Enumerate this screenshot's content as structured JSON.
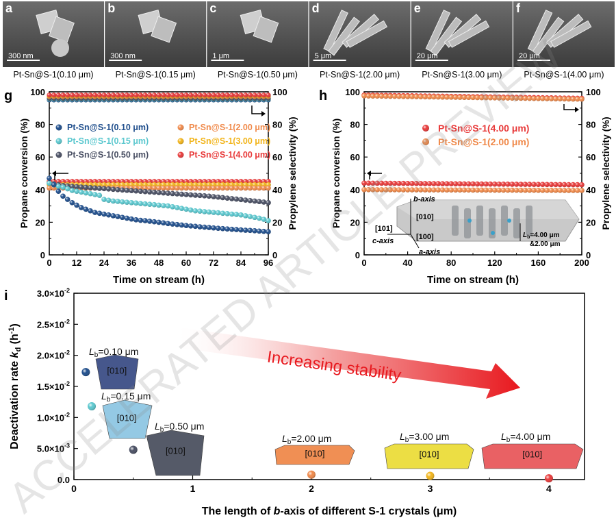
{
  "sem_panels": [
    {
      "letter": "a",
      "scale": "300 nm",
      "caption": "Pt-Sn@S-1(0.10 μm)"
    },
    {
      "letter": "b",
      "scale": "300 nm",
      "caption": "Pt-Sn@S-1(0.15 μm)"
    },
    {
      "letter": "c",
      "scale": "1 μm",
      "caption": "Pt-Sn@S-1(0.50 μm)"
    },
    {
      "letter": "d",
      "scale": "5 μm",
      "caption": "Pt-Sn@S-1(2.00 μm)"
    },
    {
      "letter": "e",
      "scale": "20 μm",
      "caption": "Pt-Sn@S-1(3.00 μm)"
    },
    {
      "letter": "f",
      "scale": "20 μm",
      "caption": "Pt-Sn@S-1(4.00 μm)"
    }
  ],
  "watermark": "ACCELERATED ARTICLE PREVIEW",
  "colors": {
    "s010": "#1f4e8c",
    "s015": "#5cc8cf",
    "s050": "#4a5064",
    "s200": "#f08a4b",
    "s300": "#f2b51c",
    "s400": "#e83a3a"
  },
  "chart_data": [
    {
      "panel": "g",
      "type": "scatter",
      "xlabel": "Time on stream (h)",
      "ylabel": "Propane conversion (%)",
      "y2label": "Propylene selectivity (%)",
      "xlim": [
        0,
        96
      ],
      "ylim": [
        0,
        100
      ],
      "y2lim": [
        0,
        100
      ],
      "xticks": [
        0,
        12,
        24,
        36,
        48,
        60,
        72,
        84,
        96
      ],
      "yticks": [
        0,
        20,
        40,
        60,
        80,
        100
      ],
      "legend": [
        {
          "name": "Pt-Sn@S-1(0.10 μm)",
          "color": "#1f4e8c"
        },
        {
          "name": "Pt-Sn@S-1(2.00 μm)",
          "color": "#f08a4b"
        },
        {
          "name": "Pt-Sn@S-1(0.15 μm)",
          "color": "#5cc8cf"
        },
        {
          "name": "Pt-Sn@S-1(3.00 μm)",
          "color": "#f2b51c"
        },
        {
          "name": "Pt-Sn@S-1(0.50 μm)",
          "color": "#4a5064"
        },
        {
          "name": "Pt-Sn@S-1(4.00 μm)",
          "color": "#e83a3a"
        }
      ],
      "conversion_series": [
        {
          "sample": "0.10",
          "color": "#1f4e8c",
          "x": [
            0,
            2,
            4,
            6,
            8,
            10,
            12,
            14,
            16,
            18,
            20,
            22,
            24,
            26,
            28,
            30,
            32,
            34,
            36,
            38,
            40,
            42,
            44,
            46,
            48,
            50,
            52,
            54,
            56,
            58,
            60,
            62,
            64,
            66,
            68,
            70,
            72,
            74,
            76,
            78,
            80,
            82,
            84,
            86,
            88,
            90,
            92,
            94,
            96
          ],
          "y": [
            47,
            43,
            39,
            36,
            34,
            32,
            30.5,
            29,
            28,
            27,
            26,
            25.5,
            25,
            24.5,
            24,
            23.5,
            23,
            22.5,
            22,
            21.5,
            21.2,
            21,
            20.6,
            20.3,
            20,
            19.6,
            19.2,
            18.9,
            18.6,
            18.3,
            18,
            17.7,
            17.5,
            17.2,
            17,
            16.8,
            16.5,
            16.3,
            16.1,
            15.9,
            15.7,
            15.5,
            15.3,
            15.1,
            15,
            14.8,
            14.6,
            14.4,
            14.2
          ]
        },
        {
          "sample": "0.15",
          "color": "#5cc8cf",
          "x": [
            0,
            2,
            4,
            6,
            8,
            10,
            12,
            14,
            16,
            18,
            20,
            22,
            24,
            26,
            28,
            30,
            32,
            34,
            36,
            38,
            40,
            42,
            44,
            46,
            48,
            50,
            52,
            54,
            56,
            58,
            60,
            62,
            64,
            66,
            68,
            70,
            72,
            74,
            76,
            78,
            80,
            82,
            84,
            86,
            88,
            90,
            92,
            94,
            96
          ],
          "y": [
            44,
            43,
            42,
            41.5,
            40.5,
            39.5,
            39,
            38.5,
            38,
            37.5,
            37,
            36.5,
            34,
            33.5,
            33,
            32.8,
            32.5,
            32.3,
            32,
            31.8,
            31.5,
            31.3,
            31,
            30.8,
            30.5,
            30.2,
            30,
            29.5,
            29,
            28.5,
            28,
            27.5,
            27,
            26.8,
            26.5,
            26.3,
            26,
            25.8,
            25.5,
            25.3,
            25,
            24.8,
            24.5,
            24,
            23.5,
            23,
            22.5,
            21.8,
            21
          ]
        },
        {
          "sample": "0.50",
          "color": "#4a5064",
          "x": [
            0,
            2,
            4,
            6,
            8,
            10,
            12,
            14,
            16,
            18,
            20,
            22,
            24,
            26,
            28,
            30,
            32,
            34,
            36,
            38,
            40,
            42,
            44,
            46,
            48,
            50,
            52,
            54,
            56,
            58,
            60,
            62,
            64,
            66,
            68,
            70,
            72,
            74,
            76,
            78,
            80,
            82,
            84,
            86,
            88,
            90,
            92,
            94,
            96
          ],
          "y": [
            44,
            43.5,
            43,
            42.5,
            42.3,
            42,
            41.8,
            41.6,
            41.4,
            41.2,
            41,
            40.8,
            40.6,
            40.4,
            40.2,
            40,
            39.8,
            39.6,
            39.4,
            39.2,
            39,
            38.8,
            38.6,
            38.4,
            38.2,
            38,
            37.8,
            37.6,
            37.4,
            37.2,
            37,
            36.8,
            36.6,
            36.4,
            36.2,
            36,
            35.7,
            35.4,
            35.1,
            34.8,
            34.5,
            34.2,
            33.9,
            33.6,
            33.3,
            33,
            32.7,
            32.4,
            32
          ]
        },
        {
          "sample": "2.00",
          "color": "#f08a4b",
          "x": [
            0,
            2,
            4,
            6,
            8,
            10,
            12,
            14,
            16,
            18,
            20,
            22,
            24,
            26,
            28,
            30,
            32,
            34,
            36,
            38,
            40,
            42,
            44,
            46,
            48,
            50,
            52,
            54,
            56,
            58,
            60,
            62,
            64,
            66,
            68,
            70,
            72,
            74,
            76,
            78,
            80,
            82,
            84,
            86,
            88,
            90,
            92,
            94,
            96
          ],
          "y": [
            41,
            41,
            41,
            41,
            41,
            41,
            41,
            41,
            41,
            41,
            41,
            41,
            41,
            41,
            41,
            41,
            41,
            41,
            41,
            41,
            41,
            41,
            41,
            41,
            41,
            41,
            41,
            41,
            41,
            41,
            41,
            41,
            41,
            41,
            41,
            41,
            41,
            41,
            41,
            41,
            41,
            41,
            41,
            41,
            41,
            41,
            41,
            41,
            41
          ]
        },
        {
          "sample": "3.00",
          "color": "#f2b51c",
          "x": [
            0,
            2,
            4,
            6,
            8,
            10,
            12,
            14,
            16,
            18,
            20,
            22,
            24,
            26,
            28,
            30,
            32,
            34,
            36,
            38,
            40,
            42,
            44,
            46,
            48,
            50,
            52,
            54,
            56,
            58,
            60,
            62,
            64,
            66,
            68,
            70,
            72,
            74,
            76,
            78,
            80,
            82,
            84,
            86,
            88,
            90,
            92,
            94,
            96
          ],
          "y": [
            43,
            43,
            43,
            43,
            43,
            43,
            43,
            43,
            43,
            43,
            43,
            43,
            43,
            43,
            43,
            43,
            43,
            43,
            43,
            43,
            43,
            43,
            43,
            43,
            43,
            43,
            43,
            43,
            43,
            43,
            43,
            43,
            43,
            43,
            43,
            43,
            43,
            43,
            43,
            43,
            43,
            43,
            43,
            43,
            43,
            43,
            43,
            43,
            43
          ]
        },
        {
          "sample": "4.00",
          "color": "#e83a3a",
          "x": [
            0,
            2,
            4,
            6,
            8,
            10,
            12,
            14,
            16,
            18,
            20,
            22,
            24,
            26,
            28,
            30,
            32,
            34,
            36,
            38,
            40,
            42,
            44,
            46,
            48,
            50,
            52,
            54,
            56,
            58,
            60,
            62,
            64,
            66,
            68,
            70,
            72,
            74,
            76,
            78,
            80,
            82,
            84,
            86,
            88,
            90,
            92,
            94,
            96
          ],
          "y": [
            45,
            45,
            45,
            45,
            45,
            45,
            45,
            45,
            45,
            45,
            45,
            45,
            45,
            45,
            45,
            45,
            45,
            45,
            45,
            45,
            45,
            45,
            45,
            45,
            45,
            45,
            45,
            45,
            45,
            45,
            45,
            45,
            45,
            45,
            45,
            45,
            45,
            45,
            45,
            45,
            45,
            45,
            45,
            45,
            45,
            45,
            45,
            45,
            45
          ]
        }
      ],
      "selectivity_series": [
        {
          "sample": "0.10",
          "color": "#1f4e8c",
          "value": 95
        },
        {
          "sample": "0.15",
          "color": "#5cc8cf",
          "value": 95.5
        },
        {
          "sample": "0.50",
          "color": "#4a5064",
          "value": 96
        },
        {
          "sample": "2.00",
          "color": "#f08a4b",
          "value": 97
        },
        {
          "sample": "3.00",
          "color": "#f2b51c",
          "value": 97.5
        },
        {
          "sample": "4.00",
          "color": "#e83a3a",
          "value": 98
        }
      ]
    },
    {
      "panel": "h",
      "type": "scatter",
      "xlabel": "Time on stream (h)",
      "ylabel": "Propane conversion (%)",
      "y2label": "Propylene selectivity (%)",
      "xlim": [
        0,
        200
      ],
      "ylim": [
        0,
        100
      ],
      "y2lim": [
        0,
        100
      ],
      "xticks": [
        0,
        40,
        80,
        120,
        160,
        200
      ],
      "yticks": [
        0,
        20,
        40,
        60,
        80,
        100
      ],
      "legend": [
        {
          "name": "Pt-Sn@S-1(4.00 μm)",
          "color": "#e83a3a"
        },
        {
          "name": "Pt-Sn@S-1(2.00 μm)",
          "color": "#f08a4b"
        }
      ],
      "conversion_series": [
        {
          "sample": "4.00",
          "color": "#e83a3a",
          "start": 0,
          "end": 200,
          "step": 4,
          "y_start": 44,
          "y_end": 43
        },
        {
          "sample": "2.00",
          "color": "#f08a4b",
          "start": 0,
          "end": 200,
          "step": 4,
          "y_start": 40,
          "y_end": 39.5
        }
      ],
      "selectivity_series": [
        {
          "sample": "4.00",
          "color": "#e83a3a",
          "start": 0,
          "end": 200,
          "step": 4,
          "y_start": 98,
          "y_end": 96
        },
        {
          "sample": "2.00",
          "color": "#f08a4b",
          "start": 0,
          "end": 200,
          "step": 4,
          "y_start": 97.5,
          "y_end": 95.5
        }
      ],
      "inset": {
        "b_axis": "b-axis",
        "a_axis": "a-axis",
        "c_axis": "c-axis",
        "dir_010": "[010]",
        "dir_100": "[100]",
        "dir_101": "[101]",
        "lb_note_1": "L",
        "lb_note_sub": "b",
        "lb_note_2": "=4.00 μm",
        "lb_note_3": "&2.00 μm"
      }
    },
    {
      "panel": "i",
      "type": "scatter",
      "xlabel_pre": "The length of ",
      "xlabel_it": "b",
      "xlabel_post": "-axis of different S-1 crystals (μm)",
      "ylabel_pre": "Deactivation rate ",
      "ylabel_it": "k",
      "ylabel_sub": "d",
      "ylabel_post": " (h",
      "ylabel_sup": "-1",
      "ylabel_end": ")",
      "xlim": [
        0,
        4.3
      ],
      "ylim": [
        0,
        0.03
      ],
      "xticks": [
        0,
        1,
        2,
        3,
        4
      ],
      "yticks": [
        {
          "v": 0,
          "text": "0.0"
        },
        {
          "v": 0.005,
          "text": "5.0×10",
          "exp": "-3"
        },
        {
          "v": 0.01,
          "text": "1.0×10",
          "exp": "-2"
        },
        {
          "v": 0.015,
          "text": "1.5×10",
          "exp": "-2"
        },
        {
          "v": 0.02,
          "text": "2.0×10",
          "exp": "-2"
        },
        {
          "v": 0.025,
          "text": "2.5×10",
          "exp": "-2"
        },
        {
          "v": 0.03,
          "text": "3.0×10",
          "exp": "-2"
        }
      ],
      "points": [
        {
          "x": 0.1,
          "y": 0.0173,
          "color": "#1f4e8c",
          "crystal_label": "=0.10 μm"
        },
        {
          "x": 0.15,
          "y": 0.0118,
          "color": "#5cc8cf",
          "crystal_label": "=0.15 μm"
        },
        {
          "x": 0.5,
          "y": 0.0048,
          "color": "#4a5064",
          "crystal_label": "=0.50 μm"
        },
        {
          "x": 2.0,
          "y": 0.0008,
          "color": "#f08a4b",
          "crystal_label": "=2.00 μm"
        },
        {
          "x": 3.0,
          "y": 0.0006,
          "color": "#f2b51c",
          "crystal_label": "=3.00 μm"
        },
        {
          "x": 4.0,
          "y": 0.0002,
          "color": "#e83a3a",
          "crystal_label": "=4.00 μm"
        }
      ],
      "crystal_face": "[010]",
      "lb_prefix": "L",
      "lb_sub": "b",
      "arrow_text": "Increasing stability"
    }
  ]
}
